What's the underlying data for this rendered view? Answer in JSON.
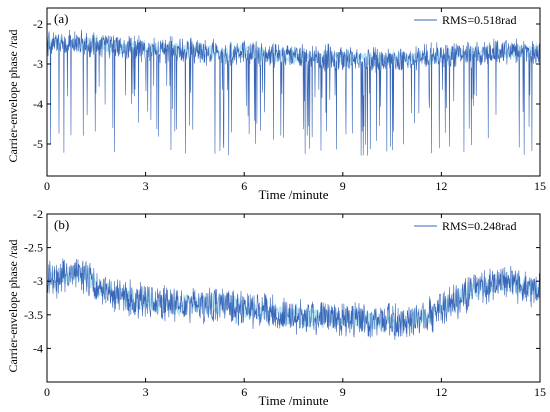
{
  "figure": {
    "ylabel": "Carrier-envelope phase /rad",
    "line_color": "#3a66b8",
    "highlight_color": "#7fd6f0"
  },
  "chart_data": [
    {
      "panel_label": "(a)",
      "type": "line",
      "xlabel": "Time /minute",
      "ylabel": "Carrier-envelope phase /rad",
      "xlim": [
        0,
        15
      ],
      "ylim": [
        -5.8,
        -1.6
      ],
      "xticks": [
        0,
        3,
        6,
        9,
        12,
        15
      ],
      "yticks": [
        -2,
        -3,
        -4,
        -5
      ],
      "legend": {
        "label": "RMS=0.518rad",
        "position": "top-right"
      },
      "grid": false,
      "baseline": [
        [
          0,
          -2.5
        ],
        [
          1,
          -2.45
        ],
        [
          2,
          -2.55
        ],
        [
          3,
          -2.6
        ],
        [
          4,
          -2.65
        ],
        [
          5,
          -2.7
        ],
        [
          6,
          -2.72
        ],
        [
          7,
          -2.78
        ],
        [
          8,
          -2.8
        ],
        [
          9,
          -2.85
        ],
        [
          10,
          -2.9
        ],
        [
          11,
          -2.88
        ],
        [
          12,
          -2.8
        ],
        [
          13,
          -2.75
        ],
        [
          14,
          -2.7
        ],
        [
          15,
          -2.7
        ]
      ],
      "noise_amplitude": 0.35,
      "spike_rate": 0.55,
      "spike_min": -5.3
    },
    {
      "panel_label": "(b)",
      "type": "line",
      "xlabel": "Time /minute",
      "ylabel": "Carrier-envelope phase /rad",
      "xlim": [
        0,
        15
      ],
      "ylim": [
        -4.5,
        -2.0
      ],
      "xticks": [
        0,
        3,
        6,
        9,
        12,
        15
      ],
      "yticks": [
        -2,
        -2.5,
        -3,
        -3.5,
        -4
      ],
      "legend": {
        "label": "RMS=0.248rad",
        "position": "top-right"
      },
      "grid": false,
      "baseline": [
        [
          0,
          -3.0
        ],
        [
          1,
          -2.85
        ],
        [
          1.5,
          -3.05
        ],
        [
          2,
          -3.2
        ],
        [
          3,
          -3.3
        ],
        [
          4,
          -3.35
        ],
        [
          5,
          -3.35
        ],
        [
          6,
          -3.4
        ],
        [
          7,
          -3.5
        ],
        [
          8,
          -3.55
        ],
        [
          9,
          -3.55
        ],
        [
          10,
          -3.6
        ],
        [
          11,
          -3.6
        ],
        [
          12,
          -3.45
        ],
        [
          13,
          -3.1
        ],
        [
          14,
          -3.0
        ],
        [
          15,
          -3.15
        ]
      ],
      "noise_amplitude": 0.28,
      "spike_rate": 0,
      "spike_min": -4.0
    }
  ]
}
